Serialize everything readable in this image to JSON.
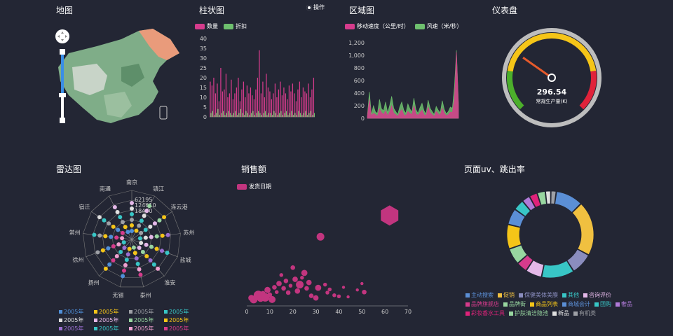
{
  "titles": {
    "map": "地图",
    "bar": "柱状图",
    "area": "区域图",
    "gauge": "仪表盘",
    "radar": "雷达图",
    "scatter": "销售额",
    "pie": "页面uv、跳出率"
  },
  "bar_panel": {
    "action_label": "操作"
  },
  "colors": {
    "background": "#232634",
    "pink": "#d63b8c",
    "green": "#6ec06e",
    "gauge_green": "#4caf2b",
    "gauge_yellow": "#f5c518",
    "gauge_red": "#e0223a"
  },
  "gauge": {
    "value_text": "296.54",
    "label": "常规生产量(K)",
    "value": 296.54,
    "max": 1000
  },
  "chart_data": [
    {
      "type": "bar",
      "title": "柱状图",
      "series": [
        {
          "name": "数量",
          "color": "#d63b8c",
          "values": [
            18,
            16,
            20,
            12,
            17,
            8,
            25,
            13,
            14,
            22,
            10,
            12,
            19,
            9,
            12,
            15,
            20,
            8,
            14,
            18,
            10,
            16,
            12,
            15,
            11,
            9,
            14,
            20,
            34,
            12,
            18,
            10,
            22,
            15,
            13,
            9,
            12,
            17,
            10,
            14,
            18,
            11,
            15,
            12,
            9,
            16,
            13,
            17,
            12,
            8,
            14,
            18,
            10,
            15,
            13,
            12,
            17,
            10,
            14,
            20
          ]
        },
        {
          "name": "折扣",
          "color": "#6ec06e",
          "values": [
            2,
            3,
            1,
            2,
            4,
            1,
            2,
            3,
            1,
            2,
            3,
            2,
            1,
            2,
            3,
            1,
            2,
            4,
            2,
            1,
            3,
            2,
            1,
            2,
            3,
            1,
            2,
            3,
            2,
            1,
            2,
            3,
            1,
            2,
            2,
            1,
            3,
            2,
            1,
            2,
            3,
            1,
            2,
            3,
            1,
            2,
            3,
            1,
            2,
            1,
            3,
            2,
            1,
            2,
            3,
            1,
            2,
            3,
            1,
            2
          ]
        }
      ],
      "ylim": [
        0,
        40
      ],
      "yticks": [
        0,
        5,
        10,
        15,
        20,
        25,
        30,
        35,
        40
      ]
    },
    {
      "type": "area",
      "title": "区域图",
      "series": [
        {
          "name": "移动速度（公里/时）",
          "color": "#d63b8c",
          "values": [
            20,
            300,
            40,
            80,
            60,
            30,
            150,
            90,
            60,
            120,
            40,
            100,
            200,
            80,
            60,
            30,
            90,
            140,
            60,
            40,
            110,
            80,
            60,
            200,
            70,
            50,
            90,
            130,
            60,
            40,
            180,
            90,
            60,
            30,
            110,
            70,
            50,
            160,
            80,
            40,
            60,
            100,
            90,
            300,
            1050,
            200
          ]
        },
        {
          "name": "风速（米/秒）",
          "color": "#6ec06e",
          "values": [
            40,
            420,
            60,
            200,
            100,
            80,
            300,
            150,
            120,
            260,
            90,
            200,
            350,
            160,
            110,
            60,
            180,
            260,
            130,
            80,
            230,
            150,
            100,
            320,
            140,
            80,
            170,
            240,
            120,
            70,
            290,
            160,
            110,
            60,
            190,
            130,
            90,
            280,
            140,
            70,
            110,
            180,
            160,
            500,
            1080,
            250
          ]
        }
      ],
      "ylim": [
        0,
        1200
      ],
      "yticks": [
        "0",
        "200",
        "400",
        "600",
        "800",
        "1,000",
        "1,200"
      ]
    },
    {
      "type": "radar",
      "title": "雷达图",
      "indicators": [
        "南京",
        "镇江",
        "连云港",
        "苏州",
        "盐城",
        "淮安",
        "泰州",
        "无锡",
        "扬州",
        "徐州",
        "常州",
        "宿迁",
        "南通"
      ],
      "ring_labels": [
        "62195",
        "124610",
        "18470"
      ],
      "legend": [
        {
          "name": "2005年",
          "color": "#4f8fd8"
        },
        {
          "name": "2005年",
          "color": "#f5c518"
        },
        {
          "name": "2005年",
          "color": "#9ea0a6"
        },
        {
          "name": "2005年",
          "color": "#38c6c6"
        },
        {
          "name": "2005年",
          "color": "#e0e0e0"
        },
        {
          "name": "2005年",
          "color": "#e4b8e8"
        },
        {
          "name": "2005年",
          "color": "#98d6a0"
        },
        {
          "name": "2005年",
          "color": "#f5c518"
        },
        {
          "name": "2005年",
          "color": "#9b6fd1"
        },
        {
          "name": "2005年",
          "color": "#38c6c6"
        },
        {
          "name": "2005年",
          "color": "#f0a0d0"
        },
        {
          "name": "2005年",
          "color": "#d63b8c"
        }
      ]
    },
    {
      "type": "scatter",
      "title": "销售额",
      "series": [
        {
          "name": "发货日期",
          "color": "#c2357f",
          "points": [
            [
              2,
              150,
              8
            ],
            [
              3,
              120,
              10
            ],
            [
              4,
              180,
              6
            ],
            [
              5,
              200,
              12
            ],
            [
              6,
              140,
              9
            ],
            [
              7,
              230,
              7
            ],
            [
              8,
              160,
              11
            ],
            [
              9,
              300,
              8
            ],
            [
              10,
              210,
              6
            ],
            [
              11,
              120,
              9
            ],
            [
              12,
              350,
              6
            ],
            [
              13,
              260,
              5
            ],
            [
              14,
              420,
              7
            ],
            [
              15,
              580,
              5
            ],
            [
              16,
              330,
              6
            ],
            [
              17,
              470,
              6
            ],
            [
              18,
              250,
              6
            ],
            [
              19,
              380,
              5
            ],
            [
              20,
              720,
              6
            ],
            [
              21,
              500,
              7
            ],
            [
              22,
              280,
              7
            ],
            [
              23,
              400,
              10
            ],
            [
              24,
              530,
              5
            ],
            [
              25,
              620,
              8
            ],
            [
              26,
              330,
              6
            ],
            [
              27,
              440,
              7
            ],
            [
              28,
              190,
              6
            ],
            [
              30,
              150,
              7
            ],
            [
              31,
              340,
              8
            ],
            [
              32,
              1300,
              10
            ],
            [
              34,
              400,
              5
            ],
            [
              35,
              250,
              5
            ],
            [
              36,
              310,
              5
            ],
            [
              38,
              200,
              5
            ],
            [
              40,
              180,
              5
            ],
            [
              42,
              350,
              4
            ],
            [
              44,
              170,
              4
            ],
            [
              48,
              300,
              4
            ],
            [
              50,
              420,
              4
            ],
            [
              51,
              260,
              6
            ],
            [
              62,
              1700,
              24
            ]
          ]
        }
      ],
      "xlim": [
        0,
        70
      ],
      "xticks": [
        0,
        10,
        20,
        30,
        40,
        50,
        60,
        70
      ]
    },
    {
      "type": "pie",
      "title": "页面uv、跳出率",
      "slices": [
        {
          "name": "主动搜索",
          "color": "#5b8fd6",
          "value": 10
        },
        {
          "name": "促销",
          "color": "#f0c040",
          "value": 20
        },
        {
          "name": "保健美体美膜",
          "color": "#8a8dbe",
          "value": 8
        },
        {
          "name": "其他",
          "color": "#38c6c6",
          "value": 12
        },
        {
          "name": "咨询评价",
          "color": "#e4b8e8",
          "value": 6
        },
        {
          "name": "品牌旗舰店",
          "color": "#d63b8c",
          "value": 4
        },
        {
          "name": "品牌街",
          "color": "#98d6a0",
          "value": 6
        },
        {
          "name": "商品列表",
          "color": "#f5c518",
          "value": 9
        },
        {
          "name": "商城会计",
          "color": "#5b8fd6",
          "value": 6
        },
        {
          "name": "团购",
          "color": "#38c6c6",
          "value": 4
        },
        {
          "name": "奢品",
          "color": "#b07ad8",
          "value": 3
        },
        {
          "name": "彩妆香水工具",
          "color": "#e0227a",
          "value": 3
        },
        {
          "name": "护肤清洁隐池",
          "color": "#98d6a0",
          "value": 3
        },
        {
          "name": "新品",
          "color": "#e0e0e0",
          "value": 2
        },
        {
          "name": "有机类",
          "color": "#9ea0a6",
          "value": 2
        }
      ]
    }
  ]
}
